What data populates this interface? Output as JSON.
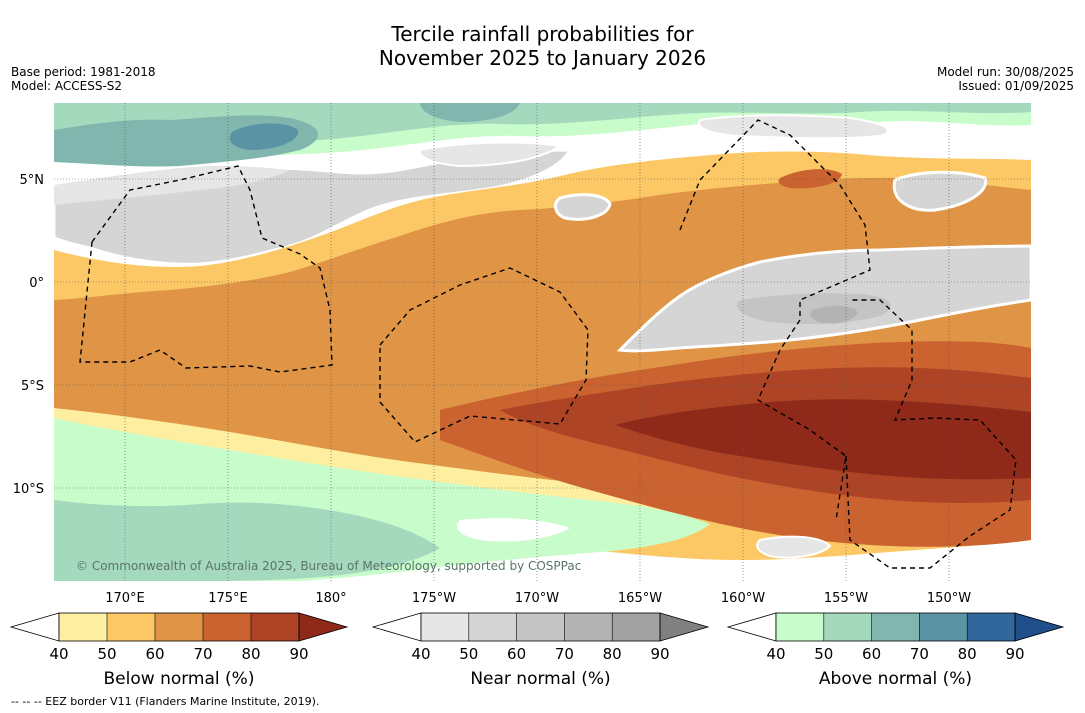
{
  "title_line1": "Tercile rainfall probabilities for",
  "title_line2": "November 2025 to January 2026",
  "meta_left": [
    "Base period: 1981-2018",
    "Model: ACCESS-S2"
  ],
  "meta_right": [
    "Model run: 30/08/2025",
    "Issued: 01/09/2025"
  ],
  "lat_labels": [
    "5°N",
    "0°",
    "5°S",
    "10°S"
  ],
  "lon_labels": [
    "170°E",
    "175°E",
    "180°",
    "175°W",
    "170°W",
    "165°W",
    "160°W",
    "155°W",
    "150°W"
  ],
  "copyright": "© Commonwealth of Australia 2025, Bureau of Meteorology, supported by COSPPac",
  "footnote": "-- -- -- EEZ border V11 (Flanders Marine Institute, 2019).",
  "colorbars": [
    {
      "title": "Below normal (%)",
      "ticks": [
        "40",
        "50",
        "60",
        "70",
        "80",
        "90"
      ],
      "colors": [
        "#ffffff",
        "#fdeea0",
        "#fcc865",
        "#e09445",
        "#cb6330",
        "#ad4426",
        "#8f2a1a"
      ]
    },
    {
      "title": "Near normal (%)",
      "ticks": [
        "40",
        "50",
        "60",
        "70",
        "80",
        "90"
      ],
      "colors": [
        "#ffffff",
        "#e6e6e6",
        "#d5d5d5",
        "#c4c4c4",
        "#b3b3b3",
        "#a2a2a2",
        "#808080"
      ]
    },
    {
      "title": "Above normal (%)",
      "ticks": [
        "40",
        "50",
        "60",
        "70",
        "80",
        "90"
      ],
      "colors": [
        "#ffffff",
        "#c9fccb",
        "#a5d9bd",
        "#80b6ad",
        "#5a93a3",
        "#31679b",
        "#1f4e8a"
      ]
    }
  ]
}
